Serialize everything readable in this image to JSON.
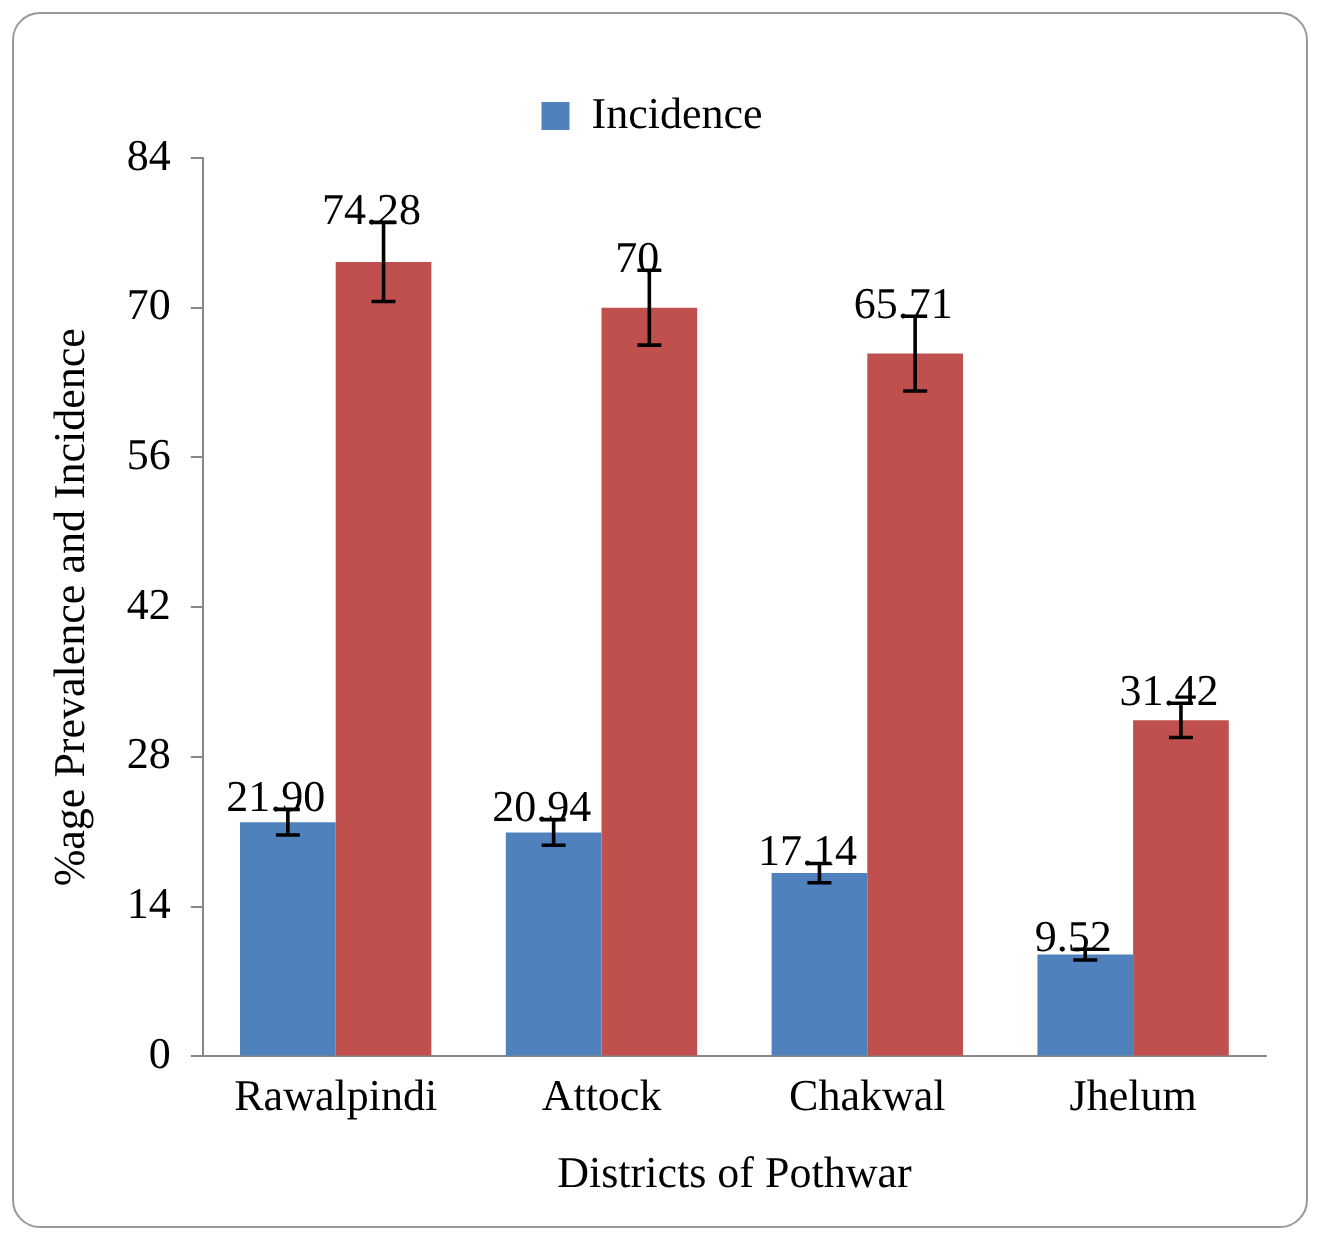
{
  "chart_data": {
    "type": "bar",
    "xlabel": "Districts of Pothwar",
    "ylabel": "%age Prevalence and Incidence",
    "categories": [
      "Rawalpindi",
      "Attock",
      "Chakwal",
      "Jhelum"
    ],
    "series": [
      {
        "name": "Incidence",
        "color": "#4f81bd",
        "values": [
          21.9,
          20.94,
          17.14,
          9.52
        ],
        "value_labels": [
          "21.90",
          "20.94",
          "17.14",
          "9.52"
        ],
        "errors": [
          1.2,
          1.2,
          0.9,
          0.5
        ]
      },
      {
        "color": "#c0504d",
        "values": [
          74.28,
          70,
          65.71,
          31.42
        ],
        "value_labels": [
          "74.28",
          "70",
          "65.71",
          "31.42"
        ],
        "errors": [
          3.7,
          3.5,
          3.5,
          1.6
        ]
      }
    ],
    "ylim": [
      0,
      84
    ],
    "yticks": [
      0,
      14,
      28,
      42,
      56,
      70,
      84
    ],
    "grid": false,
    "legend": "top"
  }
}
